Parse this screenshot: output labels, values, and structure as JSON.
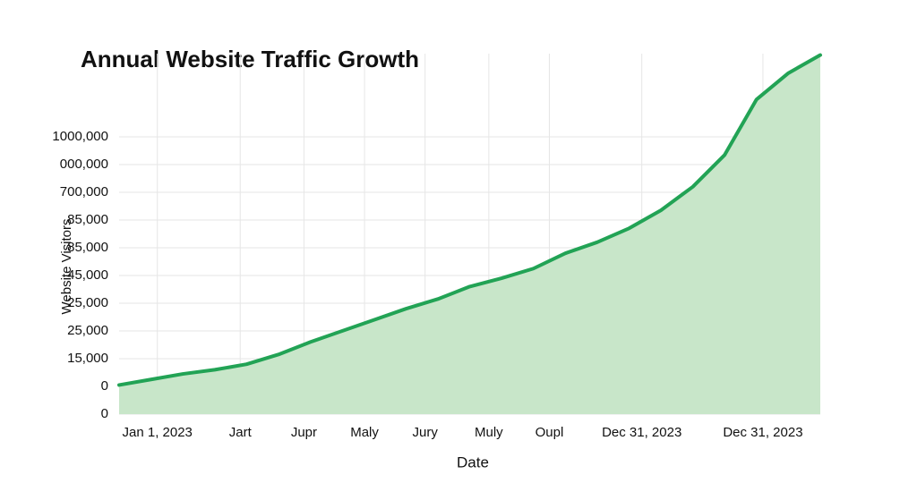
{
  "chart_data": {
    "type": "area",
    "title": "Annual Website Traffic Growth",
    "xlabel": "Date",
    "ylabel": "Website Visitors",
    "x": [
      0,
      1,
      2,
      3,
      4,
      5,
      6,
      7,
      8,
      9,
      10,
      11,
      12,
      13,
      14,
      15,
      16,
      17,
      18,
      19,
      20,
      21,
      22
    ],
    "values": [
      1.05,
      1.25,
      1.45,
      1.6,
      1.8,
      2.15,
      2.6,
      3.0,
      3.4,
      3.8,
      4.15,
      4.6,
      4.9,
      5.25,
      5.8,
      6.2,
      6.7,
      7.35,
      8.2,
      9.35,
      11.35,
      12.3,
      12.95
    ],
    "color": "#22a355",
    "fill_color": "#c8e6c9",
    "xlim": [
      0,
      22
    ],
    "xticks": [
      {
        "value": 1.2,
        "label": "Jan 1, 2023"
      },
      {
        "value": 3.8,
        "label": "Jart"
      },
      {
        "value": 5.8,
        "label": "Jupr"
      },
      {
        "value": 7.7,
        "label": "Maly"
      },
      {
        "value": 9.6,
        "label": "Jury"
      },
      {
        "value": 11.6,
        "label": "Muly"
      },
      {
        "value": 13.5,
        "label": "Oupl"
      },
      {
        "value": 16.4,
        "label": "Dec 31, 2023"
      },
      {
        "value": 20.2,
        "label": "Dec 31, 2023"
      }
    ],
    "ylim": [
      0,
      13
    ],
    "yticks": [
      {
        "value": 0,
        "label": "0"
      },
      {
        "value": 1,
        "label": "0"
      },
      {
        "value": 2,
        "label": "15,000"
      },
      {
        "value": 3,
        "label": "25,000"
      },
      {
        "value": 4,
        "label": "25,000"
      },
      {
        "value": 5,
        "label": "45,000"
      },
      {
        "value": 6,
        "label": "85,000"
      },
      {
        "value": 7,
        "label": "85,000"
      },
      {
        "value": 8,
        "label": "700,000"
      },
      {
        "value": 9,
        "label": "000,000"
      },
      {
        "value": 10,
        "label": "1000,000"
      }
    ],
    "grid": true
  }
}
